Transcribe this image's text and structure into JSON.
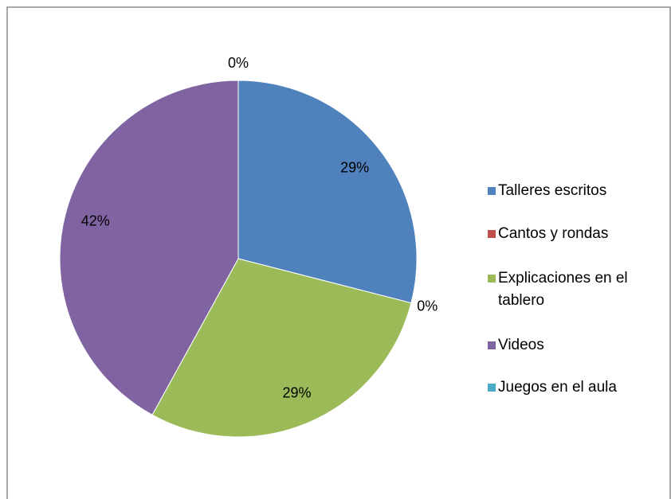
{
  "chart_data": {
    "type": "pie",
    "categories": [
      "Talleres escritos",
      "Cantos y rondas",
      "Explicaciones en el tablero",
      "Videos",
      "Juegos en el aula"
    ],
    "values": [
      29,
      0,
      29,
      42,
      0
    ],
    "value_labels": [
      "29%",
      "0%",
      "29%",
      "42%",
      "0%"
    ],
    "colors": [
      "#4f81bd",
      "#c0504d",
      "#9bbb59",
      "#8064a2",
      "#4bacc6"
    ],
    "legend": "right"
  }
}
